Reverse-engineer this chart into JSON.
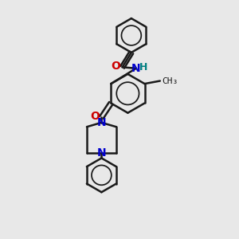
{
  "bg_color": "#e8e8e8",
  "bond_color": "#1a1a1a",
  "N_color": "#0000cc",
  "O_color": "#cc0000",
  "NH_color": "#008080",
  "figsize": [
    3.0,
    3.0
  ],
  "dpi": 100,
  "xlim": [
    0,
    10
  ],
  "ylim": [
    0,
    10
  ]
}
